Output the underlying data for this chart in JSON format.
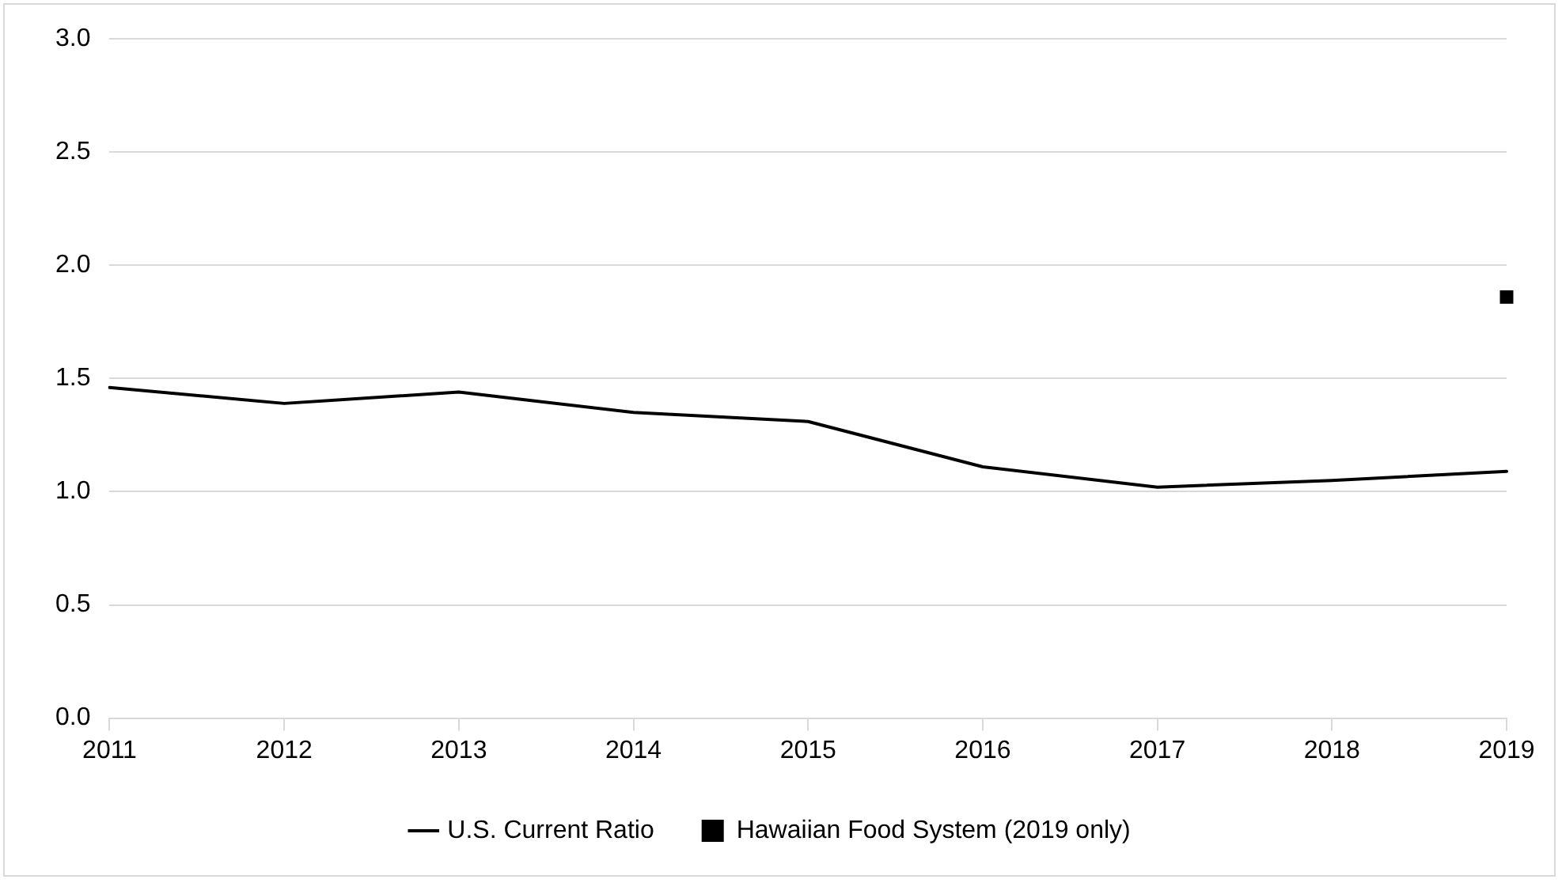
{
  "chart_data": {
    "type": "line",
    "categories": [
      "2011",
      "2012",
      "2013",
      "2014",
      "2015",
      "2016",
      "2017",
      "2018",
      "2019"
    ],
    "series": [
      {
        "name": "U.S. Current Ratio",
        "color": "#000000",
        "values": [
          1.46,
          1.39,
          1.44,
          1.35,
          1.31,
          1.11,
          1.02,
          1.05,
          1.09
        ]
      },
      {
        "name": "Hawaiian Food System (2019 only)",
        "type": "scatter",
        "marker": "square",
        "color": "#000000",
        "values": [
          null,
          null,
          null,
          null,
          null,
          null,
          null,
          null,
          1.86
        ]
      }
    ],
    "ylim": [
      0,
      3
    ],
    "yticks": [
      {
        "value": 0,
        "label": "0.0"
      },
      {
        "value": 0.5,
        "label": "0.5"
      },
      {
        "value": 1,
        "label": "1.0"
      },
      {
        "value": 1.5,
        "label": "1.5"
      },
      {
        "value": 2,
        "label": "2.0"
      },
      {
        "value": 2.5,
        "label": "2.5"
      },
      {
        "value": 3,
        "label": "3.0"
      }
    ],
    "grid": "y",
    "legend": "bottom",
    "marker": "none",
    "line_style": "solid"
  }
}
